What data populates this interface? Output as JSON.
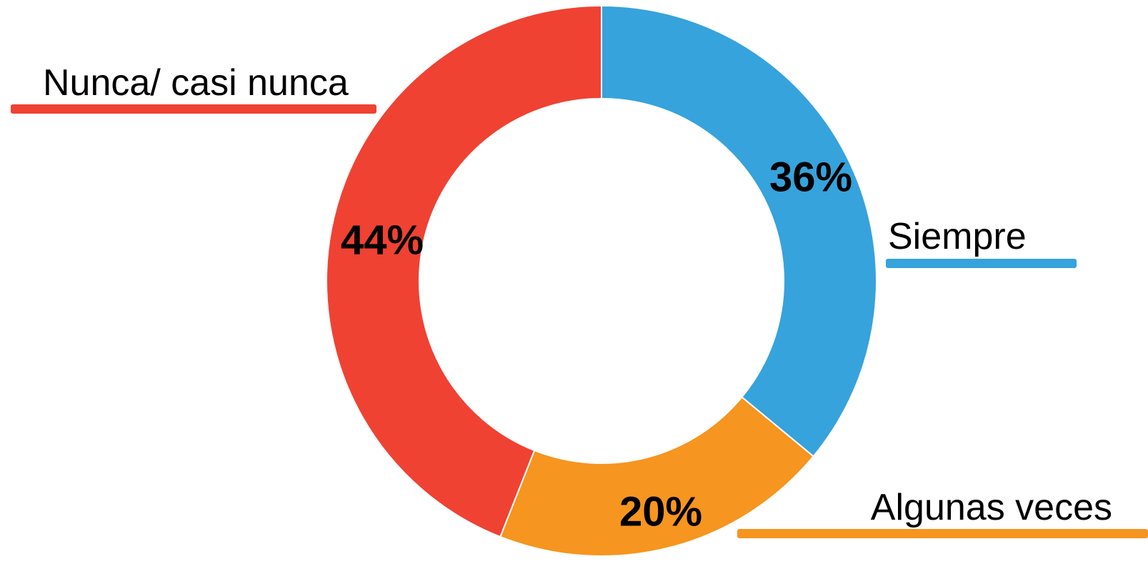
{
  "chart_data": {
    "type": "donut",
    "categories": [
      "Siempre",
      "Algunas veces",
      "Nunca/ casi nunca"
    ],
    "values": [
      36,
      20,
      44
    ],
    "value_labels": [
      "36%",
      "20%",
      "44%"
    ],
    "colors": [
      "#36a3dc",
      "#f6951f",
      "#ef4233"
    ]
  }
}
